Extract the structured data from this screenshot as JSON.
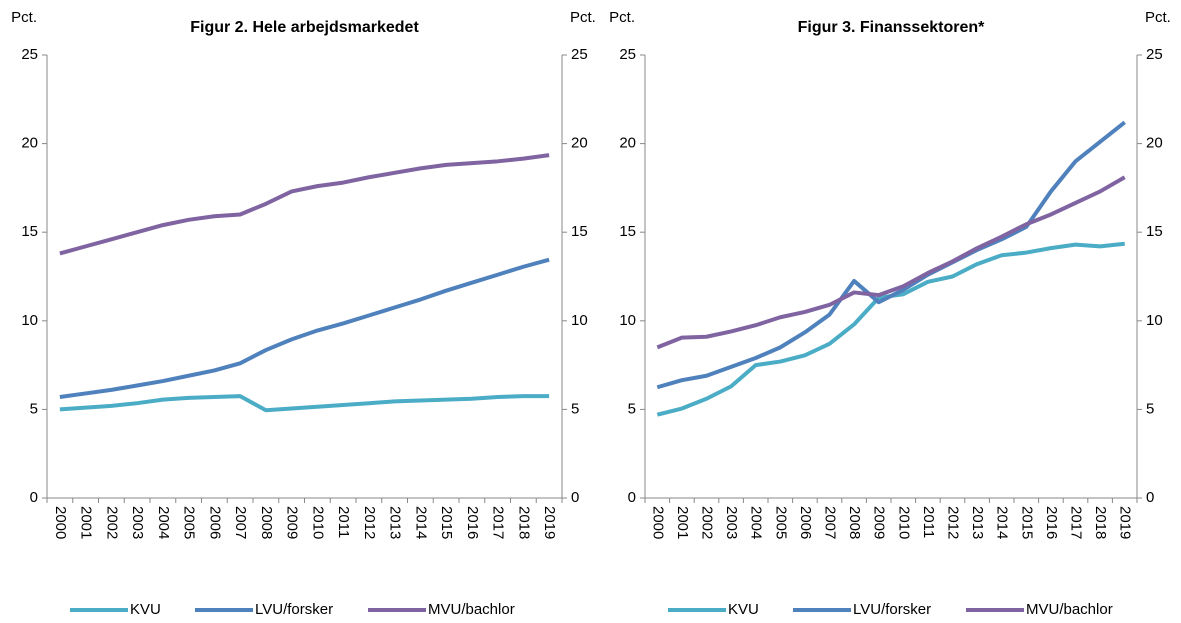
{
  "chart_data": [
    {
      "type": "line",
      "title": "Figur 2. Hele arbejdsmarkedet",
      "y_label": "Pct.",
      "y2_label": "Pct.",
      "categories": [
        "2000",
        "2001",
        "2002",
        "2003",
        "2004",
        "2005",
        "2006",
        "2007",
        "2008",
        "2009",
        "2010",
        "2011",
        "2012",
        "2013",
        "2014",
        "2015",
        "2016",
        "2017",
        "2018",
        "2019"
      ],
      "series": [
        {
          "name": "KVU",
          "color": "#4bacc6",
          "values": [
            5.0,
            5.1,
            5.2,
            5.35,
            5.55,
            5.65,
            5.7,
            5.75,
            4.95,
            5.05,
            5.15,
            5.25,
            5.35,
            5.45,
            5.5,
            5.55,
            5.6,
            5.7,
            5.75,
            5.75
          ]
        },
        {
          "name": "LVU/forsker",
          "color": "#4f81bd",
          "values": [
            5.7,
            5.9,
            6.1,
            6.35,
            6.6,
            6.9,
            7.2,
            7.6,
            8.35,
            8.95,
            9.45,
            9.85,
            10.3,
            10.75,
            11.2,
            11.7,
            12.15,
            12.6,
            13.05,
            13.45
          ]
        },
        {
          "name": "MVU/bachlor",
          "color": "#8064a2",
          "values": [
            13.8,
            14.2,
            14.6,
            15.0,
            15.4,
            15.7,
            15.9,
            16.0,
            16.6,
            17.3,
            17.6,
            17.8,
            18.1,
            18.35,
            18.6,
            18.8,
            18.9,
            19.0,
            19.15,
            19.35
          ]
        }
      ],
      "ylim": [
        0,
        25
      ],
      "yticks": [
        0,
        5,
        10,
        15,
        20,
        25
      ],
      "y2lim": [
        0,
        25
      ],
      "y2ticks": [
        0,
        5,
        10,
        15,
        20,
        25
      ],
      "legend": "bottom"
    },
    {
      "type": "line",
      "title": "Figur 3. Finanssektoren*",
      "y_label": "Pct.",
      "y2_label": "Pct.",
      "categories": [
        "2000",
        "2001",
        "2002",
        "2003",
        "2004",
        "2005",
        "2006",
        "2007",
        "2008",
        "2009",
        "2010",
        "2011",
        "2012",
        "2013",
        "2014",
        "2015",
        "2016",
        "2017",
        "2018",
        "2019"
      ],
      "series": [
        {
          "name": "KVU",
          "color": "#4bacc6",
          "values": [
            4.7,
            5.05,
            5.6,
            6.3,
            7.5,
            7.7,
            8.05,
            8.7,
            9.8,
            11.3,
            11.5,
            12.2,
            12.5,
            13.2,
            13.7,
            13.85,
            14.1,
            14.3,
            14.2,
            14.35
          ]
        },
        {
          "name": "LVU/forsker",
          "color": "#4f81bd",
          "values": [
            6.25,
            6.65,
            6.9,
            7.4,
            7.9,
            8.5,
            9.35,
            10.35,
            12.25,
            11.05,
            11.75,
            12.6,
            13.3,
            14.0,
            14.6,
            15.3,
            17.3,
            19.0,
            20.1,
            21.2
          ]
        },
        {
          "name": "MVU/bachlor",
          "color": "#8064a2",
          "values": [
            8.5,
            9.05,
            9.1,
            9.4,
            9.75,
            10.2,
            10.5,
            10.9,
            11.6,
            11.45,
            11.95,
            12.7,
            13.35,
            14.1,
            14.75,
            15.45,
            16.0,
            16.65,
            17.3,
            18.1
          ]
        }
      ],
      "ylim": [
        0,
        25
      ],
      "yticks": [
        0,
        5,
        10,
        15,
        20,
        25
      ],
      "y2lim": [
        0,
        25
      ],
      "y2ticks": [
        0,
        5,
        10,
        15,
        20,
        25
      ],
      "legend": "bottom"
    }
  ]
}
